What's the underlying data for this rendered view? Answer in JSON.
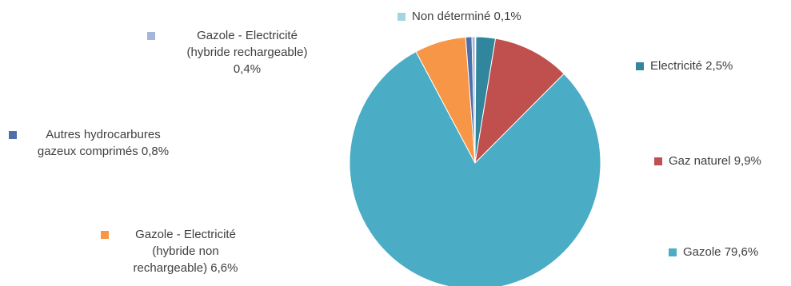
{
  "chart_data": {
    "type": "pie",
    "title": "",
    "slices": [
      {
        "label": "Non déterminé",
        "value": 0.1,
        "display": "0,1%",
        "color": "#a6d4e3"
      },
      {
        "label": "Electricité",
        "value": 2.5,
        "display": "2,5%",
        "color": "#31859c"
      },
      {
        "label": "Gaz naturel",
        "value": 9.9,
        "display": "9,9%",
        "color": "#c0504d"
      },
      {
        "label": "Gazole",
        "value": 79.6,
        "display": "79,6%",
        "color": "#4bacc6"
      },
      {
        "label": "Gazole - Electricité (hybride non rechargeable)",
        "value": 6.6,
        "display": "6,6%",
        "color": "#f79646"
      },
      {
        "label": "Autres hydrocarbures gazeux comprimés",
        "value": 0.8,
        "display": "0,8%",
        "color": "#4f6fa8"
      },
      {
        "label": "Gazole - Electricité (hybride rechargeable)",
        "value": 0.4,
        "display": "0,4%",
        "color": "#a5b6dc"
      }
    ]
  },
  "labels": {
    "non_determine": "Non déterminé 0,1%",
    "electricite": "Electricité 2,5%",
    "gaz_naturel": "Gaz naturel 9,9%",
    "gazole": "Gazole 79,6%",
    "hybride_non_rech": {
      "line1": "Gazole - Electricité",
      "line2": "(hybride non",
      "line3": "rechargeable) 6,6%"
    },
    "autres_hydro": {
      "line1": "Autres hydrocarbures",
      "line2": "gazeux comprimés 0,8%"
    },
    "hybride_rech": {
      "line1": "Gazole - Electricité",
      "line2": "(hybride rechargeable)",
      "line3": "0,4%"
    }
  }
}
